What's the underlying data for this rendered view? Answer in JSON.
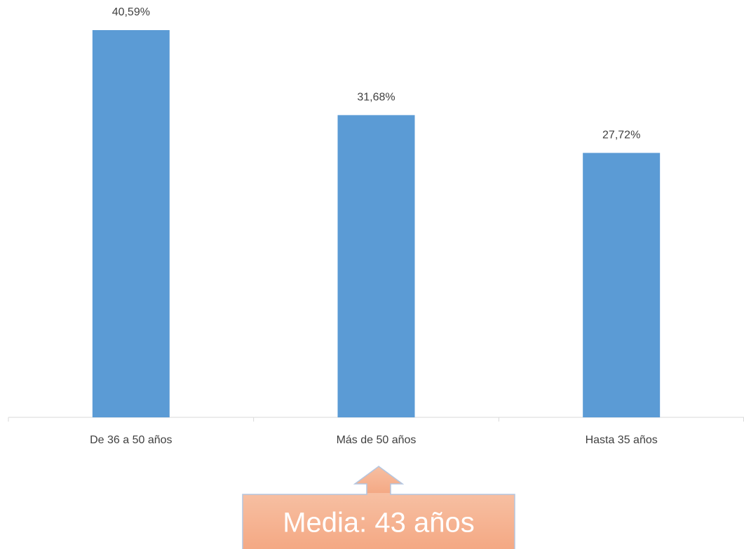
{
  "chart_data": {
    "type": "bar",
    "categories": [
      "De 36 a 50 años",
      "Más de 50 años",
      "Hasta 35 años"
    ],
    "values": [
      40.59,
      31.68,
      27.72
    ],
    "value_labels": [
      "40,59%",
      "31,68%",
      "27,72%"
    ],
    "color": "#5b9bd5",
    "annotation": "Media: 43 años"
  }
}
